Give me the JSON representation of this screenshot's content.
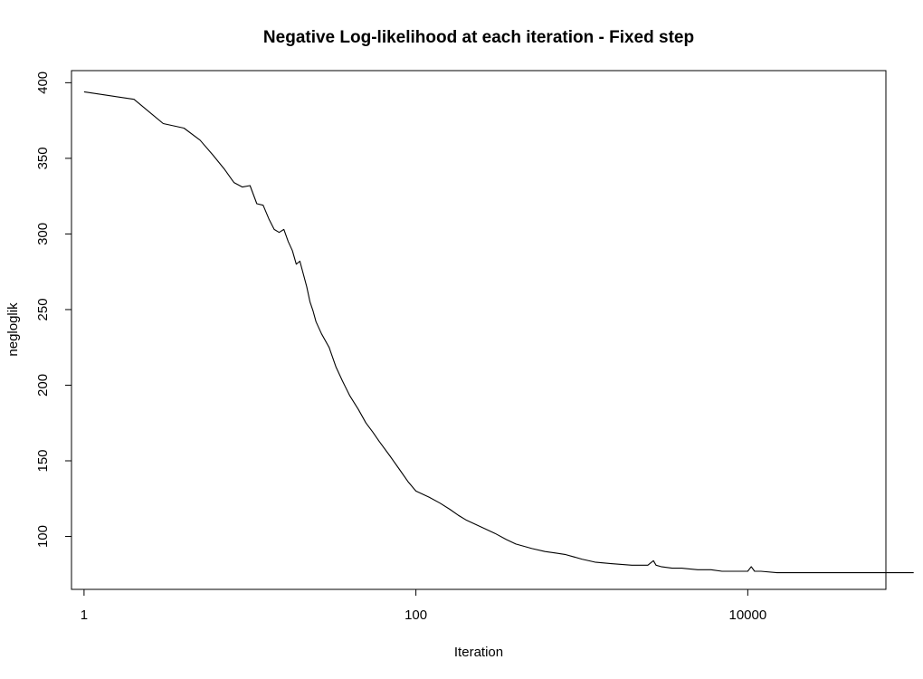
{
  "chart_data": {
    "type": "line",
    "title": "Negative Log-likelihood at each iteration - Fixed step",
    "xlabel": "Iteration",
    "ylabel": "negloglik",
    "x_scale": "log",
    "xlim": [
      0.84,
      68000
    ],
    "ylim": [
      65,
      408
    ],
    "x_ticks": [
      1,
      100,
      10000
    ],
    "x_tick_labels": [
      "1",
      "100",
      "10000"
    ],
    "y_ticks": [
      100,
      150,
      200,
      250,
      300,
      350,
      400
    ],
    "y_tick_labels": [
      "100",
      "150",
      "200",
      "250",
      "300",
      "350",
      "400"
    ],
    "grid": false,
    "legend": "none",
    "series": [
      {
        "color": "#000000",
        "x": [
          1,
          2,
          3,
          4,
          5,
          6,
          7,
          8,
          9,
          10,
          11,
          12,
          13,
          14,
          15,
          16,
          17,
          18,
          19,
          20,
          22,
          23,
          24,
          25,
          27,
          30,
          33,
          36,
          40,
          45,
          50,
          55,
          60,
          70,
          80,
          90,
          100,
          120,
          140,
          160,
          180,
          200,
          250,
          300,
          350,
          400,
          500,
          600,
          700,
          800,
          1000,
          1200,
          1500,
          2000,
          2500,
          2700,
          2800,
          3000,
          3500,
          4000,
          5000,
          6000,
          7000,
          8000,
          10000,
          10500,
          11000,
          12000,
          15000,
          20000,
          25000,
          30000,
          40000,
          50000,
          60000,
          70000,
          80000,
          90000,
          100000
        ],
        "y": [
          394,
          389,
          373,
          370,
          362,
          352,
          343,
          334,
          331,
          332,
          320,
          319,
          310,
          303,
          301,
          303,
          295,
          289,
          280,
          282,
          265,
          255,
          249,
          242,
          234,
          225,
          212,
          203,
          193,
          184,
          175,
          169,
          163,
          153,
          144,
          136,
          130,
          126,
          122,
          118,
          114,
          111,
          106,
          102,
          98,
          95,
          92,
          90,
          89,
          88,
          85,
          83,
          82,
          81,
          81,
          84,
          81,
          80,
          79,
          79,
          78,
          78,
          77,
          77,
          77,
          80,
          77,
          77,
          76,
          76,
          76,
          76,
          76,
          76,
          76,
          76,
          76,
          76,
          76
        ]
      }
    ]
  }
}
